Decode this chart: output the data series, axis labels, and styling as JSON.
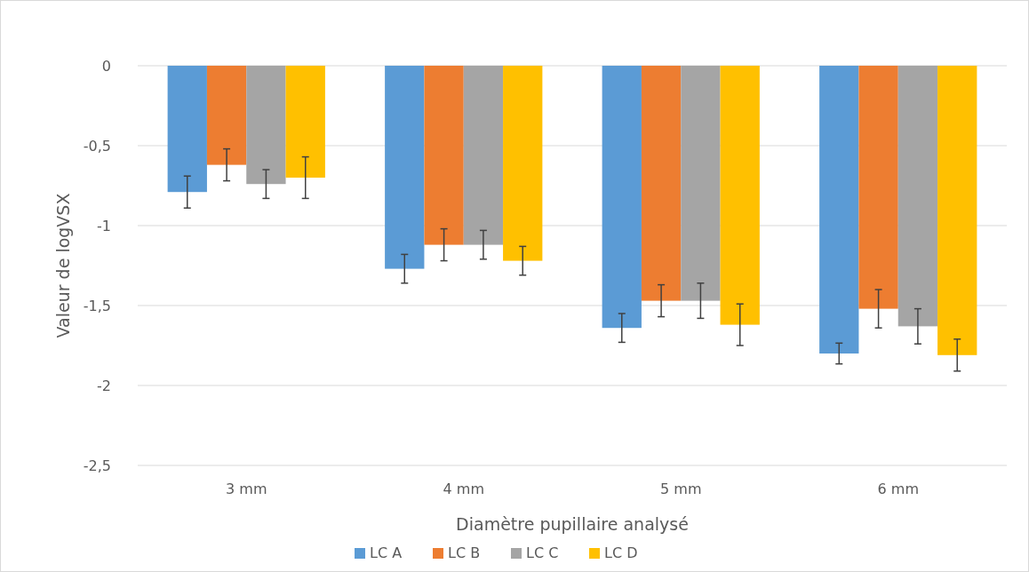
{
  "chart_data": {
    "type": "bar",
    "xlabel": "Diamètre pupillaire analysé",
    "ylabel": "Valeur de logVSX",
    "categories": [
      "3 mm",
      "4 mm",
      "5 mm",
      "6 mm"
    ],
    "series": [
      {
        "name": "LC A",
        "color": "#5b9bd5",
        "values": [
          -0.79,
          -1.27,
          -1.64,
          -1.8
        ],
        "errors": [
          0.1,
          0.09,
          0.09,
          0.065
        ]
      },
      {
        "name": "LC B",
        "color": "#ed7d31",
        "values": [
          -0.62,
          -1.12,
          -1.47,
          -1.52
        ],
        "errors": [
          0.1,
          0.1,
          0.1,
          0.12
        ]
      },
      {
        "name": "LC C",
        "color": "#a5a5a5",
        "values": [
          -0.74,
          -1.12,
          -1.47,
          -1.63
        ],
        "errors": [
          0.09,
          0.09,
          0.11,
          0.11
        ]
      },
      {
        "name": "LC D",
        "color": "#ffc000",
        "values": [
          -0.7,
          -1.22,
          -1.62,
          -1.81
        ],
        "errors": [
          0.13,
          0.09,
          0.13,
          0.1
        ]
      }
    ],
    "ylim": [
      -2.5,
      0
    ],
    "yticks": [
      {
        "value": 0,
        "label": "0"
      },
      {
        "value": -0.5,
        "label": "-0,5"
      },
      {
        "value": -1,
        "label": "-1"
      },
      {
        "value": -1.5,
        "label": "-1,5"
      },
      {
        "value": -2,
        "label": "-2"
      },
      {
        "value": -2.5,
        "label": "-2,5"
      }
    ],
    "grid": "y",
    "legend": "bottom"
  }
}
